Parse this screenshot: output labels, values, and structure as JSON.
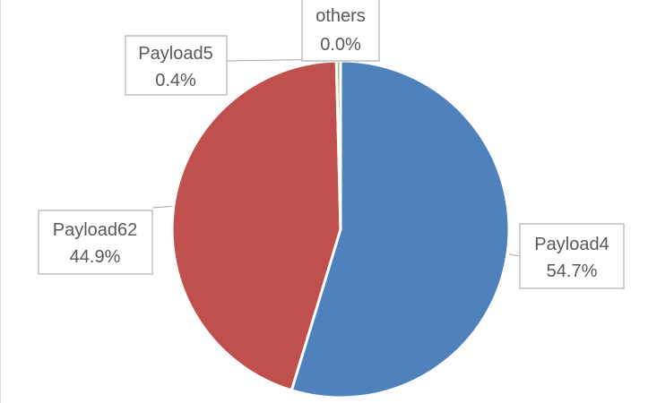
{
  "chart_data": {
    "type": "pie",
    "slices": [
      {
        "label": "Payload4",
        "value": 54.7,
        "value_text": "54.7%",
        "color": "#4f81bd"
      },
      {
        "label": "Payload62",
        "value": 44.9,
        "value_text": "44.9%",
        "color": "#c0504d"
      },
      {
        "label": "Payload5",
        "value": 0.4,
        "value_text": "0.4%",
        "color": "#9bbb59"
      },
      {
        "label": "others",
        "value": 0.0,
        "value_text": "0.0%",
        "color": "#8064a2"
      }
    ],
    "start_angle_deg": 0,
    "direction": "clockwise",
    "legend": "none",
    "data_labels": "outside-with-leader-lines"
  }
}
